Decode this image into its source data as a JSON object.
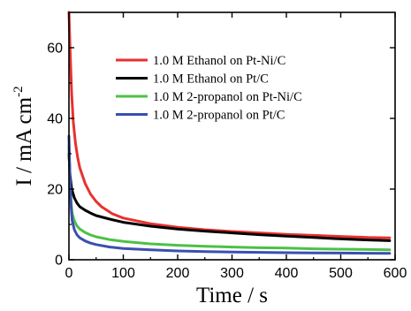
{
  "chart_data": {
    "type": "line",
    "xlabel": "Time / s",
    "ylabel_main": "I / mA cm",
    "ylabel_sup": "-2",
    "xlim": [
      0,
      600
    ],
    "ylim": [
      0,
      70
    ],
    "xticks": [
      0,
      100,
      200,
      300,
      400,
      500,
      600
    ],
    "yticks": [
      0,
      20,
      40,
      60
    ],
    "x_tick_labels": [
      "0",
      "100",
      "200",
      "300",
      "400",
      "500",
      "600"
    ],
    "y_tick_labels": [
      "0",
      "20",
      "40",
      "60"
    ],
    "grid": false,
    "legend_position": "top-right",
    "series": [
      {
        "name": "1.0 M Ethanol on Pt-Ni/C",
        "color": "#e8312f",
        "points": [
          [
            0,
            70
          ],
          [
            2,
            60
          ],
          [
            5,
            47
          ],
          [
            8,
            39
          ],
          [
            12,
            33
          ],
          [
            16,
            29
          ],
          [
            20,
            26
          ],
          [
            30,
            21.5
          ],
          [
            40,
            18.5
          ],
          [
            50,
            16.5
          ],
          [
            60,
            15
          ],
          [
            80,
            13
          ],
          [
            100,
            11.8
          ],
          [
            150,
            10.2
          ],
          [
            200,
            9.2
          ],
          [
            250,
            8.5
          ],
          [
            300,
            8
          ],
          [
            350,
            7.6
          ],
          [
            400,
            7.2
          ],
          [
            450,
            6.9
          ],
          [
            500,
            6.6
          ],
          [
            550,
            6.3
          ],
          [
            590,
            6.2
          ]
        ]
      },
      {
        "name": "1.0 M Ethanol on Pt/C",
        "color": "#000000",
        "points": [
          [
            0,
            30
          ],
          [
            2,
            24
          ],
          [
            5,
            20
          ],
          [
            10,
            17.5
          ],
          [
            15,
            16
          ],
          [
            20,
            15
          ],
          [
            30,
            14
          ],
          [
            40,
            13.2
          ],
          [
            50,
            12.5
          ],
          [
            75,
            11.5
          ],
          [
            100,
            10.6
          ],
          [
            150,
            9.5
          ],
          [
            200,
            8.7
          ],
          [
            250,
            8.1
          ],
          [
            300,
            7.6
          ],
          [
            350,
            7.1
          ],
          [
            400,
            6.7
          ],
          [
            450,
            6.3
          ],
          [
            500,
            5.9
          ],
          [
            550,
            5.6
          ],
          [
            590,
            5.4
          ]
        ]
      },
      {
        "name": "1.0 M 2-propanol on Pt-Ni/C",
        "color": "#4cc146",
        "points": [
          [
            0,
            32
          ],
          [
            2,
            22
          ],
          [
            4,
            16
          ],
          [
            6,
            13
          ],
          [
            10,
            11
          ],
          [
            15,
            9.5
          ],
          [
            20,
            8.7
          ],
          [
            30,
            7.7
          ],
          [
            40,
            7
          ],
          [
            50,
            6.5
          ],
          [
            75,
            5.7
          ],
          [
            100,
            5.2
          ],
          [
            150,
            4.5
          ],
          [
            200,
            4.1
          ],
          [
            250,
            3.8
          ],
          [
            300,
            3.6
          ],
          [
            350,
            3.4
          ],
          [
            400,
            3.3
          ],
          [
            450,
            3.1
          ],
          [
            500,
            3
          ],
          [
            550,
            2.9
          ],
          [
            590,
            2.8
          ]
        ]
      },
      {
        "name": "1.0 M 2-propanol on Pt/C",
        "color": "#3a4fb0",
        "points": [
          [
            0,
            35
          ],
          [
            2,
            22
          ],
          [
            4,
            15
          ],
          [
            6,
            11
          ],
          [
            10,
            8.5
          ],
          [
            15,
            7
          ],
          [
            20,
            6.2
          ],
          [
            30,
            5.3
          ],
          [
            40,
            4.7
          ],
          [
            50,
            4.3
          ],
          [
            75,
            3.6
          ],
          [
            100,
            3.2
          ],
          [
            150,
            2.8
          ],
          [
            200,
            2.5
          ],
          [
            250,
            2.3
          ],
          [
            300,
            2.2
          ],
          [
            350,
            2.1
          ],
          [
            400,
            2
          ],
          [
            450,
            1.95
          ],
          [
            500,
            1.9
          ],
          [
            550,
            1.85
          ],
          [
            590,
            1.8
          ]
        ]
      }
    ]
  }
}
